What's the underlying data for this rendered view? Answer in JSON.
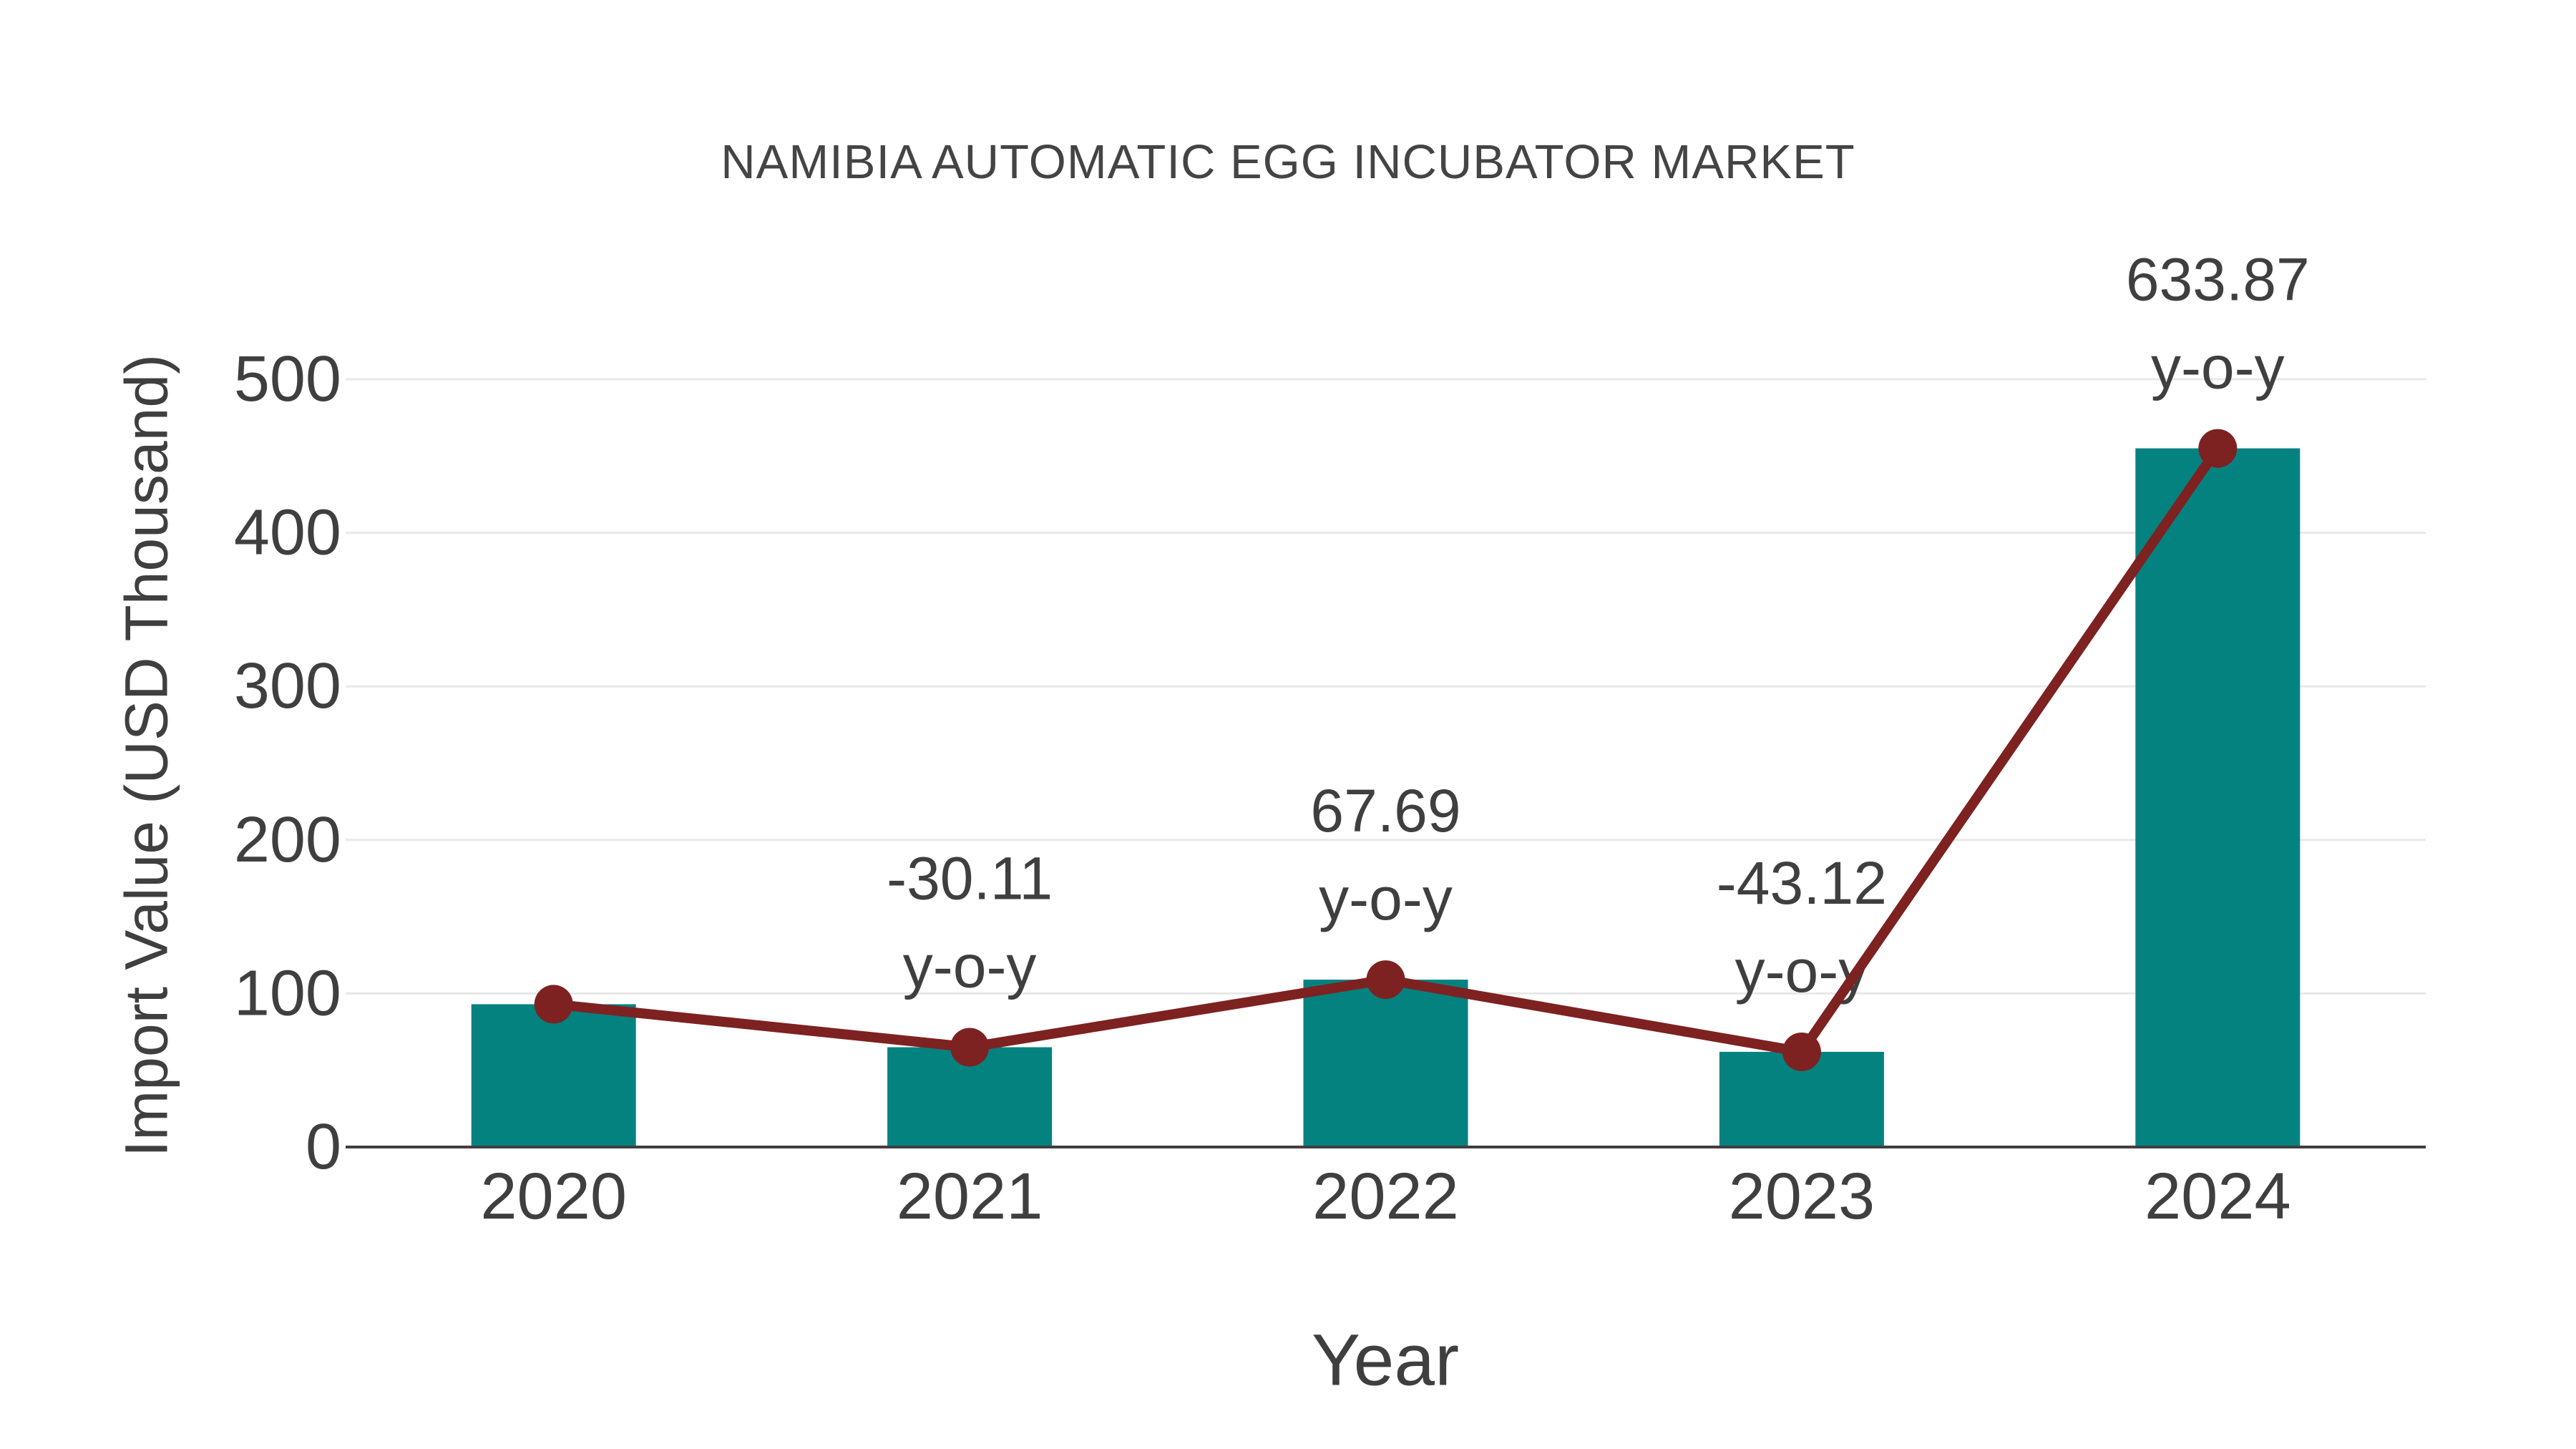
{
  "chart_data": {
    "type": "bar",
    "title": "NAMIBIA AUTOMATIC EGG INCUBATOR MARKET",
    "xlabel": "Year",
    "ylabel": "Import Value (USD Thousand)",
    "categories": [
      "2020",
      "2021",
      "2022",
      "2023",
      "2024"
    ],
    "series": [
      {
        "name": "Import Value",
        "type": "bar",
        "color": "#048280",
        "values": [
          93,
          65,
          109,
          62,
          455
        ]
      },
      {
        "name": "y-o-y change",
        "type": "line",
        "color": "#7E2121",
        "values": [
          93,
          65,
          109,
          62,
          455
        ],
        "annotations": [
          null,
          "-30.11",
          "67.69",
          "-43.12",
          "633.87"
        ],
        "annotation_suffix": "y-o-y"
      }
    ],
    "ylim": [
      0,
      500
    ],
    "yticks": [
      0,
      100,
      200,
      300,
      400,
      500
    ],
    "grid": true,
    "legend_position": "none",
    "style": {
      "text_color": "#3f3f3f",
      "title_color": "#444444",
      "grid_color": "#e8e8e8",
      "axis_color": "#3f3f3f",
      "background": "#ffffff"
    }
  }
}
